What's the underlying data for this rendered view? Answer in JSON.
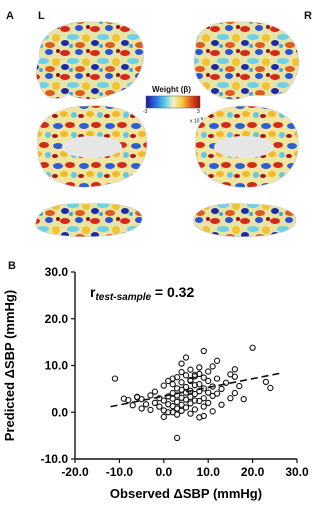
{
  "panel_a": {
    "letter": "A",
    "left_label": "L",
    "right_label": "R",
    "colorbar": {
      "title": "Weight (β)",
      "min_label": "-3",
      "max_label": "3",
      "exponent_label": "x 10",
      "exponent_sup": "-5",
      "colors": [
        "#1a1aa0",
        "#2b6fe0",
        "#5fd0e8",
        "#f2f2c8",
        "#f2d040",
        "#e0501a",
        "#a01010"
      ]
    }
  },
  "panel_b": {
    "letter": "B"
  },
  "chart_data": {
    "type": "scatter",
    "xlabel": "Observed ΔSBP (mmHg)",
    "ylabel": "Predicted ΔSBP (mmHg)",
    "xlim": [
      -20,
      30
    ],
    "ylim": [
      -10,
      30
    ],
    "x_ticks": [
      -20,
      -10,
      0,
      10,
      20,
      30
    ],
    "x_tick_labels": [
      "-20.0",
      "-10.0",
      "0.0",
      "10.0",
      "20.0",
      "30.0"
    ],
    "y_ticks": [
      -10,
      0,
      10,
      20,
      30
    ],
    "y_tick_labels": [
      "-10.0",
      "0.0",
      "10.0",
      "20.0",
      "30.0"
    ],
    "annotation": {
      "r_symbol": "r",
      "r_subscript": "test-sample",
      "r_value": "= 0.32"
    },
    "fit_line": {
      "x": [
        -12,
        26
      ],
      "y": [
        1.2,
        8.3
      ]
    },
    "points": [
      [
        -11,
        7.2
      ],
      [
        -8,
        2.6
      ],
      [
        -7,
        1.5
      ],
      [
        -6,
        3.2
      ],
      [
        -5,
        2.8
      ],
      [
        -5,
        0.8
      ],
      [
        -4,
        1.7
      ],
      [
        -3,
        3.6
      ],
      [
        -3,
        0.5
      ],
      [
        -2,
        4.4
      ],
      [
        -2,
        2.0
      ],
      [
        -1,
        3.0
      ],
      [
        -1,
        1.2
      ],
      [
        0,
        5.7
      ],
      [
        0,
        2.5
      ],
      [
        0,
        0.4
      ],
      [
        0,
        -1.0
      ],
      [
        1,
        3.4
      ],
      [
        1,
        1.7
      ],
      [
        1,
        0.0
      ],
      [
        2,
        6.0
      ],
      [
        2,
        4.1
      ],
      [
        2,
        2.9
      ],
      [
        2,
        1.3
      ],
      [
        2,
        0.0
      ],
      [
        3,
        7.5
      ],
      [
        3,
        5.1
      ],
      [
        3,
        3.6
      ],
      [
        3,
        2.2
      ],
      [
        3,
        0.8
      ],
      [
        3,
        -0.5
      ],
      [
        4,
        8.6
      ],
      [
        4,
        6.4
      ],
      [
        4,
        4.8
      ],
      [
        4,
        3.1
      ],
      [
        4,
        1.6
      ],
      [
        4,
        0.3
      ],
      [
        5,
        11.7
      ],
      [
        5,
        7.9
      ],
      [
        5,
        5.4
      ],
      [
        5,
        4.2
      ],
      [
        5,
        2.7
      ],
      [
        5,
        1.0
      ],
      [
        6,
        9.1
      ],
      [
        6,
        6.7
      ],
      [
        6,
        4.6
      ],
      [
        6,
        3.3
      ],
      [
        6,
        1.9
      ],
      [
        6,
        -0.3
      ],
      [
        7,
        7.7
      ],
      [
        7,
        5.8
      ],
      [
        7,
        3.9
      ],
      [
        7,
        2.5
      ],
      [
        7,
        0.6
      ],
      [
        8,
        9.6
      ],
      [
        8,
        6.0
      ],
      [
        8,
        4.5
      ],
      [
        8,
        2.4
      ],
      [
        8,
        -1.1
      ],
      [
        9,
        13.1
      ],
      [
        9,
        7.4
      ],
      [
        9,
        5.1
      ],
      [
        9,
        3.0
      ],
      [
        9,
        1.2
      ],
      [
        10,
        6.7
      ],
      [
        10,
        4.2
      ],
      [
        10,
        2.0
      ],
      [
        11,
        9.8
      ],
      [
        11,
        5.5
      ],
      [
        11,
        3.5
      ],
      [
        11,
        0.2
      ],
      [
        12,
        7.2
      ],
      [
        12,
        4.0
      ],
      [
        13,
        5.0
      ],
      [
        13,
        1.6
      ],
      [
        14,
        6.3
      ],
      [
        15,
        3.0
      ],
      [
        16,
        7.6
      ],
      [
        16,
        4.1
      ],
      [
        17,
        5.6
      ],
      [
        18,
        2.8
      ],
      [
        20,
        13.8
      ],
      [
        23,
        6.5
      ],
      [
        24,
        5.2
      ],
      [
        3,
        -5.5
      ],
      [
        -9,
        2.9
      ],
      [
        -6,
        3.3
      ],
      [
        1,
        6.7
      ],
      [
        2,
        7.2
      ],
      [
        6,
        6.9
      ],
      [
        7,
        8.0
      ],
      [
        8,
        8.2
      ],
      [
        10,
        8.7
      ],
      [
        15,
        8.1
      ],
      [
        16,
        9.2
      ],
      [
        9,
        -0.8
      ],
      [
        4,
        10.4
      ],
      [
        12,
        11.0
      ]
    ]
  }
}
